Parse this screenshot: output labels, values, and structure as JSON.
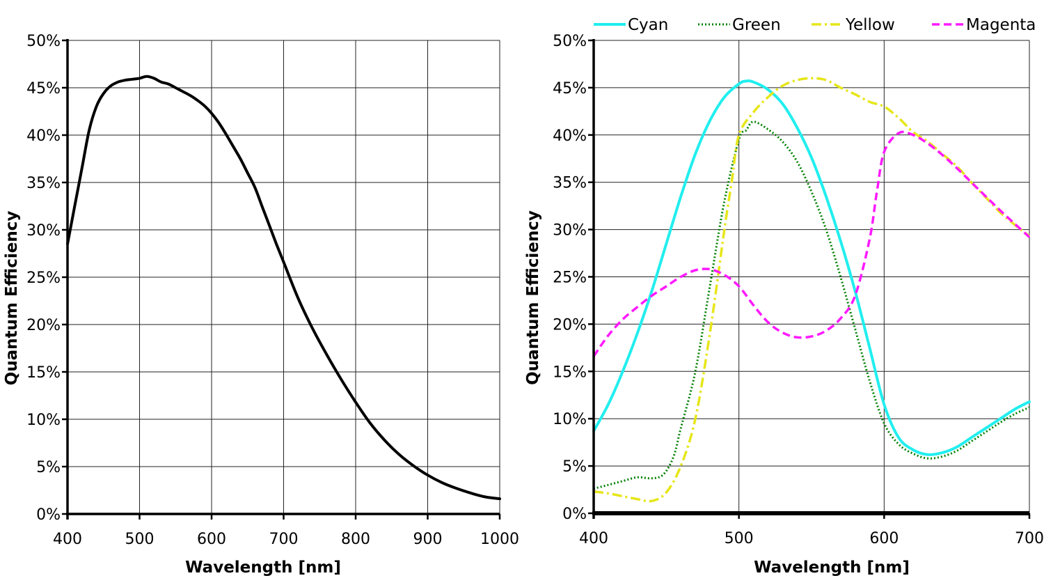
{
  "chart_data": [
    {
      "type": "line",
      "xlabel": "Wavelength [nm]",
      "ylabel": "Quantum Efficiency",
      "xlim": [
        400,
        1000
      ],
      "ylim": [
        0,
        50
      ],
      "x_ticks": [
        "400",
        "500",
        "600",
        "700",
        "800",
        "900",
        "1000"
      ],
      "y_ticks": [
        "0%",
        "5%",
        "10%",
        "15%",
        "20%",
        "25%",
        "30%",
        "35%",
        "40%",
        "45%",
        "50%"
      ],
      "grid": true,
      "series": [
        {
          "color": "#000000",
          "style": "solid",
          "points": [
            [
              400,
              28.5
            ],
            [
              410,
              32.5
            ],
            [
              420,
              36.5
            ],
            [
              430,
              40.5
            ],
            [
              440,
              43
            ],
            [
              450,
              44.4
            ],
            [
              460,
              45.2
            ],
            [
              470,
              45.6
            ],
            [
              480,
              45.8
            ],
            [
              490,
              45.9
            ],
            [
              500,
              46
            ],
            [
              510,
              46.2
            ],
            [
              520,
              46
            ],
            [
              530,
              45.6
            ],
            [
              540,
              45.4
            ],
            [
              550,
              45
            ],
            [
              560,
              44.6
            ],
            [
              570,
              44.2
            ],
            [
              580,
              43.7
            ],
            [
              590,
              43.1
            ],
            [
              600,
              42.3
            ],
            [
              610,
              41.3
            ],
            [
              620,
              40.1
            ],
            [
              630,
              38.8
            ],
            [
              640,
              37.5
            ],
            [
              650,
              36
            ],
            [
              660,
              34.5
            ],
            [
              670,
              32.5
            ],
            [
              680,
              30.5
            ],
            [
              690,
              28.5
            ],
            [
              700,
              26.6
            ],
            [
              720,
              22.8
            ],
            [
              740,
              19.6
            ],
            [
              760,
              16.8
            ],
            [
              780,
              14.2
            ],
            [
              800,
              11.8
            ],
            [
              820,
              9.6
            ],
            [
              840,
              7.8
            ],
            [
              860,
              6.3
            ],
            [
              880,
              5.1
            ],
            [
              900,
              4.1
            ],
            [
              920,
              3.3
            ],
            [
              940,
              2.7
            ],
            [
              960,
              2.2
            ],
            [
              980,
              1.8
            ],
            [
              1000,
              1.6
            ]
          ]
        }
      ]
    },
    {
      "type": "line",
      "xlabel": "Wavelength [nm]",
      "ylabel": "Quantum Efficiency",
      "xlim": [
        400,
        700
      ],
      "ylim": [
        0,
        50
      ],
      "x_ticks": [
        "400",
        "500",
        "600",
        "700"
      ],
      "y_ticks": [
        "0%",
        "5%",
        "10%",
        "15%",
        "20%",
        "25%",
        "30%",
        "35%",
        "40%",
        "45%",
        "50%"
      ],
      "grid": true,
      "legend": "top",
      "series": [
        {
          "name": "Cyan",
          "color": "#22eeee",
          "style": "solid",
          "points": [
            [
              400,
              8.7
            ],
            [
              410,
              11.5
            ],
            [
              420,
              15
            ],
            [
              430,
              19
            ],
            [
              440,
              23.5
            ],
            [
              450,
              28.5
            ],
            [
              460,
              33.5
            ],
            [
              470,
              38
            ],
            [
              480,
              41.5
            ],
            [
              490,
              44
            ],
            [
              500,
              45.4
            ],
            [
              505,
              45.7
            ],
            [
              510,
              45.6
            ],
            [
              520,
              44.8
            ],
            [
              530,
              43.3
            ],
            [
              540,
              40.8
            ],
            [
              550,
              37.6
            ],
            [
              560,
              33.5
            ],
            [
              570,
              28.8
            ],
            [
              580,
              23.5
            ],
            [
              590,
              17.5
            ],
            [
              600,
              11.5
            ],
            [
              610,
              8
            ],
            [
              620,
              6.7
            ],
            [
              630,
              6.2
            ],
            [
              640,
              6.4
            ],
            [
              650,
              7
            ],
            [
              660,
              8
            ],
            [
              670,
              9
            ],
            [
              680,
              10
            ],
            [
              690,
              11
            ],
            [
              700,
              11.8
            ]
          ]
        },
        {
          "name": "Green",
          "color": "#008000",
          "style": "dotted",
          "points": [
            [
              400,
              2.6
            ],
            [
              410,
              3
            ],
            [
              420,
              3.4
            ],
            [
              430,
              3.8
            ],
            [
              440,
              3.7
            ],
            [
              448,
              4.1
            ],
            [
              455,
              6
            ],
            [
              460,
              9
            ],
            [
              470,
              15
            ],
            [
              480,
              24
            ],
            [
              490,
              33
            ],
            [
              500,
              39.5
            ],
            [
              505,
              40.5
            ],
            [
              510,
              41.4
            ],
            [
              520,
              40.6
            ],
            [
              530,
              39.3
            ],
            [
              540,
              37.2
            ],
            [
              550,
              34
            ],
            [
              560,
              30
            ],
            [
              570,
              25
            ],
            [
              580,
              19.5
            ],
            [
              590,
              14
            ],
            [
              600,
              9.5
            ],
            [
              610,
              7.3
            ],
            [
              620,
              6.3
            ],
            [
              630,
              5.8
            ],
            [
              640,
              6
            ],
            [
              650,
              6.6
            ],
            [
              660,
              7.6
            ],
            [
              670,
              8.6
            ],
            [
              680,
              9.6
            ],
            [
              690,
              10.5
            ],
            [
              700,
              11.2
            ]
          ]
        },
        {
          "name": "Yellow",
          "color": "#e6e61a",
          "style": "dashdot",
          "points": [
            [
              400,
              2.3
            ],
            [
              410,
              2.1
            ],
            [
              420,
              1.8
            ],
            [
              430,
              1.5
            ],
            [
              440,
              1.3
            ],
            [
              450,
              2.2
            ],
            [
              460,
              5
            ],
            [
              470,
              10
            ],
            [
              480,
              19
            ],
            [
              490,
              30
            ],
            [
              495,
              35
            ],
            [
              500,
              40
            ],
            [
              510,
              42.4
            ],
            [
              520,
              44
            ],
            [
              530,
              45.2
            ],
            [
              540,
              45.8
            ],
            [
              550,
              46
            ],
            [
              560,
              45.8
            ],
            [
              570,
              45
            ],
            [
              580,
              44.3
            ],
            [
              590,
              43.5
            ],
            [
              600,
              43
            ],
            [
              610,
              41.8
            ],
            [
              620,
              40.3
            ],
            [
              630,
              39.3
            ],
            [
              640,
              38
            ],
            [
              650,
              36.7
            ],
            [
              660,
              35
            ],
            [
              670,
              33.4
            ],
            [
              680,
              31.8
            ],
            [
              690,
              30.5
            ],
            [
              700,
              29.3
            ]
          ]
        },
        {
          "name": "Magenta",
          "color": "#ff1aff",
          "style": "dashed",
          "points": [
            [
              400,
              16.6
            ],
            [
              410,
              18.8
            ],
            [
              420,
              20.5
            ],
            [
              430,
              21.8
            ],
            [
              440,
              23
            ],
            [
              450,
              24
            ],
            [
              460,
              25
            ],
            [
              470,
              25.7
            ],
            [
              480,
              25.8
            ],
            [
              490,
              25.2
            ],
            [
              500,
              24
            ],
            [
              510,
              22
            ],
            [
              520,
              20.2
            ],
            [
              530,
              19.1
            ],
            [
              540,
              18.6
            ],
            [
              550,
              18.7
            ],
            [
              560,
              19.3
            ],
            [
              570,
              20.6
            ],
            [
              580,
              23
            ],
            [
              590,
              29
            ],
            [
              595,
              34
            ],
            [
              600,
              38.2
            ],
            [
              610,
              40.2
            ],
            [
              620,
              40
            ],
            [
              630,
              39.1
            ],
            [
              640,
              37.9
            ],
            [
              650,
              36.5
            ],
            [
              660,
              35
            ],
            [
              670,
              33.5
            ],
            [
              680,
              32
            ],
            [
              690,
              30.6
            ],
            [
              700,
              29.2
            ]
          ]
        }
      ]
    }
  ]
}
